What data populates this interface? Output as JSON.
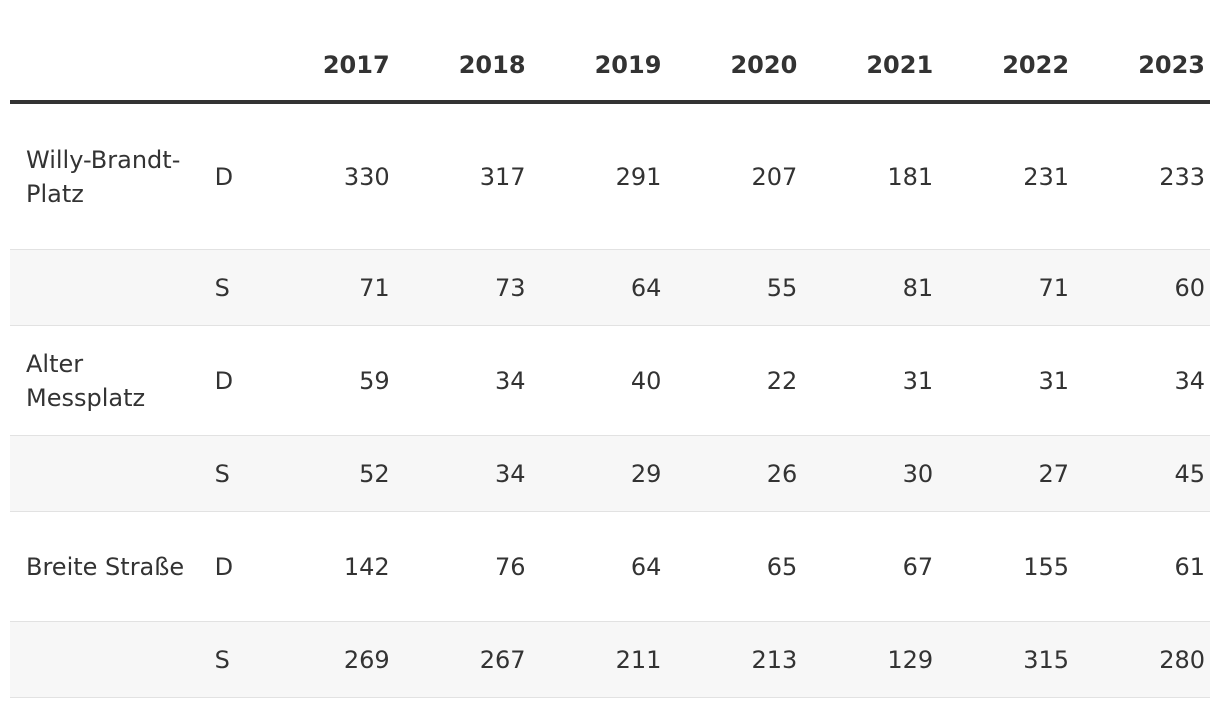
{
  "table": {
    "columns": [
      "2017",
      "2018",
      "2019",
      "2020",
      "2021",
      "2022",
      "2023"
    ],
    "groups": [
      {
        "label": "Willy-Brandt-Platz",
        "rows": [
          {
            "type": "D",
            "values": [
              "330",
              "317",
              "291",
              "207",
              "181",
              "231",
              "233"
            ]
          },
          {
            "type": "S",
            "values": [
              "71",
              "73",
              "64",
              "55",
              "81",
              "71",
              "60"
            ]
          }
        ]
      },
      {
        "label": "Alter Messplatz",
        "rows": [
          {
            "type": "D",
            "values": [
              "59",
              "34",
              "40",
              "22",
              "31",
              "31",
              "34"
            ]
          },
          {
            "type": "S",
            "values": [
              "52",
              "34",
              "29",
              "26",
              "30",
              "27",
              "45"
            ]
          }
        ]
      },
      {
        "label": "Breite Straße",
        "rows": [
          {
            "type": "D",
            "values": [
              "142",
              "76",
              "64",
              "65",
              "67",
              "155",
              "61"
            ]
          },
          {
            "type": "S",
            "values": [
              "269",
              "267",
              "211",
              "213",
              "129",
              "315",
              "280"
            ]
          }
        ]
      }
    ]
  }
}
